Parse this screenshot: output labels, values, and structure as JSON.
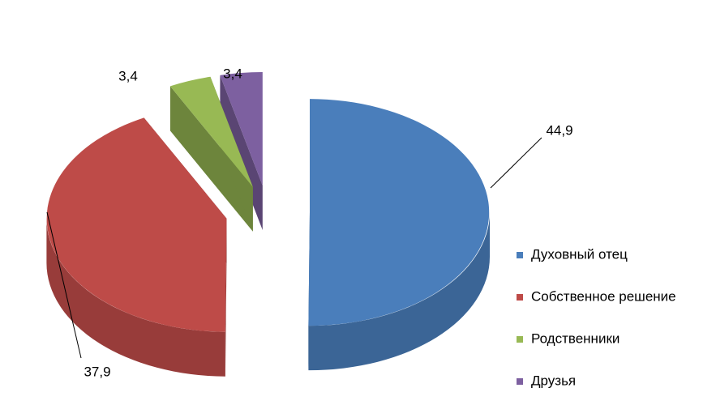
{
  "chart_data": {
    "type": "pie",
    "categories": [
      "Духовный отец",
      "Собственное решение",
      "Родственники",
      "Друзья"
    ],
    "values": [
      44.9,
      37.9,
      3.4,
      3.4
    ],
    "value_labels": [
      "44,9",
      "37,9",
      "3,4",
      "3,4"
    ],
    "colors": [
      "#4a7ebb",
      "#be4b48",
      "#98b954",
      "#7d60a0"
    ],
    "legend": "right"
  }
}
